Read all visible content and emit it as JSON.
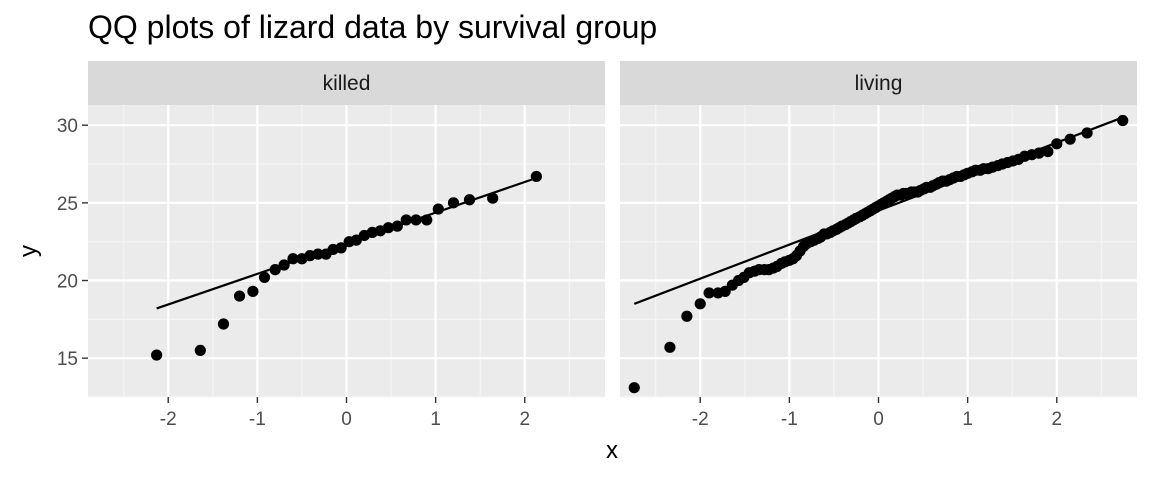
{
  "colors": {
    "panel_bg": "#ebebeb",
    "strip_bg": "#d9d9d9",
    "grid_major": "#ffffff",
    "grid_minor": "#f5f5f5",
    "tick": "#333333",
    "point": "#000000",
    "line": "#000000"
  },
  "chart_data": {
    "type": "scatter",
    "title": "QQ plots of lizard data by survival group",
    "xlabel": "x",
    "ylabel": "y",
    "xlim": [
      -2.9,
      2.9
    ],
    "ylim": [
      12.5,
      31.3
    ],
    "x_ticks": [
      -2,
      -1,
      0,
      1,
      2
    ],
    "y_ticks": [
      15,
      20,
      25,
      30
    ],
    "grid": true,
    "legend": "none",
    "facets": [
      {
        "name": "killed",
        "line": {
          "x": [
            -2.13,
            2.13
          ],
          "y": [
            18.2,
            26.6
          ]
        },
        "points": [
          [
            -2.13,
            15.2
          ],
          [
            -1.64,
            15.5
          ],
          [
            -1.38,
            17.2
          ],
          [
            -1.2,
            19.0
          ],
          [
            -1.05,
            19.3
          ],
          [
            -0.92,
            20.2
          ],
          [
            -0.8,
            20.7
          ],
          [
            -0.7,
            21.0
          ],
          [
            -0.6,
            21.4
          ],
          [
            -0.5,
            21.4
          ],
          [
            -0.41,
            21.6
          ],
          [
            -0.32,
            21.7
          ],
          [
            -0.23,
            21.7
          ],
          [
            -0.15,
            22.0
          ],
          [
            -0.06,
            22.1
          ],
          [
            0.03,
            22.5
          ],
          [
            0.11,
            22.6
          ],
          [
            0.2,
            22.9
          ],
          [
            0.29,
            23.1
          ],
          [
            0.38,
            23.2
          ],
          [
            0.47,
            23.4
          ],
          [
            0.57,
            23.5
          ],
          [
            0.67,
            23.9
          ],
          [
            0.78,
            23.9
          ],
          [
            0.9,
            23.9
          ],
          [
            1.03,
            24.6
          ],
          [
            1.2,
            25.0
          ],
          [
            1.38,
            25.2
          ],
          [
            1.64,
            25.3
          ],
          [
            2.13,
            26.7
          ]
        ]
      },
      {
        "name": "living",
        "line": {
          "x": [
            -2.74,
            2.74
          ],
          "y": [
            18.5,
            30.5
          ]
        },
        "points": [
          [
            -2.74,
            13.1
          ],
          [
            -2.34,
            15.7
          ],
          [
            -2.15,
            17.7
          ],
          [
            -2.0,
            18.5
          ],
          [
            -1.9,
            19.2
          ],
          [
            -1.8,
            19.2
          ],
          [
            -1.72,
            19.3
          ],
          [
            -1.64,
            19.7
          ],
          [
            -1.57,
            20.0
          ],
          [
            -1.51,
            20.2
          ],
          [
            -1.45,
            20.5
          ],
          [
            -1.39,
            20.6
          ],
          [
            -1.34,
            20.7
          ],
          [
            -1.28,
            20.7
          ],
          [
            -1.23,
            20.7
          ],
          [
            -1.18,
            20.8
          ],
          [
            -1.14,
            20.9
          ],
          [
            -1.09,
            21.1
          ],
          [
            -1.05,
            21.2
          ],
          [
            -1.0,
            21.3
          ],
          [
            -0.96,
            21.4
          ],
          [
            -0.92,
            21.6
          ],
          [
            -0.88,
            21.9
          ],
          [
            -0.84,
            22.2
          ],
          [
            -0.8,
            22.4
          ],
          [
            -0.76,
            22.5
          ],
          [
            -0.72,
            22.6
          ],
          [
            -0.68,
            22.7
          ],
          [
            -0.65,
            22.8
          ],
          [
            -0.61,
            23.0
          ],
          [
            -0.58,
            23.0
          ],
          [
            -0.54,
            23.1
          ],
          [
            -0.51,
            23.2
          ],
          [
            -0.47,
            23.3
          ],
          [
            -0.44,
            23.4
          ],
          [
            -0.41,
            23.5
          ],
          [
            -0.37,
            23.6
          ],
          [
            -0.34,
            23.7
          ],
          [
            -0.31,
            23.8
          ],
          [
            -0.28,
            23.9
          ],
          [
            -0.25,
            24.0
          ],
          [
            -0.21,
            24.1
          ],
          [
            -0.18,
            24.2
          ],
          [
            -0.15,
            24.3
          ],
          [
            -0.12,
            24.4
          ],
          [
            -0.09,
            24.5
          ],
          [
            -0.06,
            24.6
          ],
          [
            -0.03,
            24.7
          ],
          [
            0.0,
            24.8
          ],
          [
            0.03,
            24.9
          ],
          [
            0.06,
            25.0
          ],
          [
            0.09,
            25.1
          ],
          [
            0.12,
            25.2
          ],
          [
            0.15,
            25.3
          ],
          [
            0.18,
            25.4
          ],
          [
            0.21,
            25.5
          ],
          [
            0.25,
            25.5
          ],
          [
            0.28,
            25.6
          ],
          [
            0.31,
            25.6
          ],
          [
            0.34,
            25.6
          ],
          [
            0.37,
            25.7
          ],
          [
            0.41,
            25.7
          ],
          [
            0.44,
            25.7
          ],
          [
            0.47,
            25.8
          ],
          [
            0.51,
            25.9
          ],
          [
            0.54,
            26.0
          ],
          [
            0.58,
            26.0
          ],
          [
            0.61,
            26.1
          ],
          [
            0.65,
            26.2
          ],
          [
            0.68,
            26.3
          ],
          [
            0.72,
            26.4
          ],
          [
            0.76,
            26.4
          ],
          [
            0.8,
            26.5
          ],
          [
            0.84,
            26.6
          ],
          [
            0.88,
            26.7
          ],
          [
            0.92,
            26.7
          ],
          [
            0.96,
            26.8
          ],
          [
            1.0,
            26.9
          ],
          [
            1.05,
            27.0
          ],
          [
            1.09,
            27.1
          ],
          [
            1.14,
            27.1
          ],
          [
            1.18,
            27.2
          ],
          [
            1.23,
            27.2
          ],
          [
            1.28,
            27.3
          ],
          [
            1.34,
            27.4
          ],
          [
            1.39,
            27.5
          ],
          [
            1.45,
            27.6
          ],
          [
            1.51,
            27.7
          ],
          [
            1.57,
            27.8
          ],
          [
            1.64,
            28.0
          ],
          [
            1.72,
            28.1
          ],
          [
            1.8,
            28.2
          ],
          [
            1.9,
            28.3
          ],
          [
            2.0,
            28.8
          ],
          [
            2.15,
            29.1
          ],
          [
            2.34,
            29.5
          ],
          [
            2.74,
            30.3
          ]
        ]
      }
    ]
  }
}
